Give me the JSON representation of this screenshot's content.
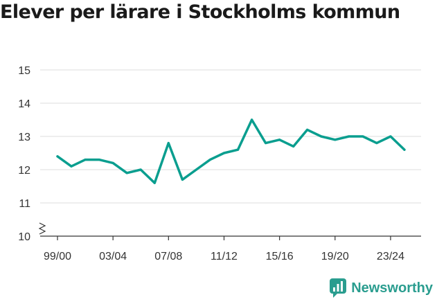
{
  "title": "Elever per lärare i Stockholms kommun",
  "brand": {
    "name": "Newsworthy",
    "icon": "newsworthy-logo-icon",
    "color": "#2a9d8f"
  },
  "chart_data": {
    "type": "line",
    "title": "Elever per lärare i Stockholms kommun",
    "xlabel": "",
    "ylabel": "",
    "x": [
      "99/00",
      "00/01",
      "01/02",
      "02/03",
      "03/04",
      "04/05",
      "05/06",
      "06/07",
      "07/08",
      "08/09",
      "09/10",
      "10/11",
      "11/12",
      "12/13",
      "13/14",
      "14/15",
      "15/16",
      "16/17",
      "17/18",
      "18/19",
      "19/20",
      "20/21",
      "21/22",
      "22/23",
      "23/24",
      "24/25"
    ],
    "x_tick_labels": [
      "99/00",
      "03/04",
      "07/08",
      "11/12",
      "15/16",
      "19/20",
      "23/24"
    ],
    "y_tick_labels": [
      "10",
      "11",
      "12",
      "13",
      "14",
      "15"
    ],
    "ylim": [
      10,
      15
    ],
    "y_axis_break": true,
    "grid": true,
    "series": [
      {
        "color": "#0a9e8f",
        "values": [
          12.4,
          12.1,
          12.3,
          12.3,
          12.2,
          11.9,
          12.0,
          11.6,
          12.8,
          11.7,
          12.0,
          12.3,
          12.5,
          12.6,
          13.5,
          12.8,
          12.9,
          12.7,
          13.2,
          13.0,
          12.9,
          13.0,
          13.0,
          12.8,
          13.0,
          12.6
        ]
      }
    ]
  }
}
